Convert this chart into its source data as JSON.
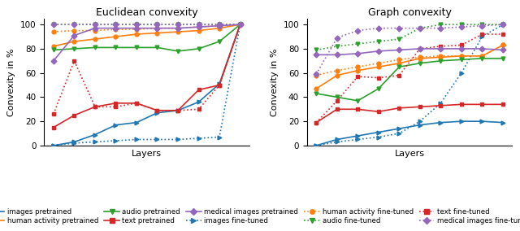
{
  "euclidean": {
    "title": "Euclidean convexity",
    "images_pretrained": [
      0,
      3,
      9,
      17,
      19,
      27,
      29,
      36,
      51,
      100
    ],
    "images_finetuned": [
      0,
      2,
      3,
      4,
      5,
      5,
      5,
      6,
      7,
      100
    ],
    "human_pretrained": [
      82,
      86,
      88,
      90,
      92,
      93,
      94,
      95,
      97,
      100
    ],
    "human_finetuned": [
      94,
      95,
      95,
      96,
      96,
      97,
      97,
      98,
      99,
      100
    ],
    "audio_pretrained": [
      79,
      80,
      81,
      81,
      81,
      81,
      78,
      80,
      86,
      100
    ],
    "audio_finetuned": [
      100,
      100,
      100,
      100,
      100,
      100,
      100,
      100,
      100,
      100
    ],
    "text_pretrained": [
      15,
      25,
      32,
      35,
      35,
      29,
      29,
      46,
      50,
      100
    ],
    "text_finetuned": [
      26,
      70,
      32,
      32,
      35,
      29,
      29,
      30,
      50,
      100
    ],
    "medical_pretrained": [
      70,
      91,
      97,
      97,
      97,
      97,
      97,
      98,
      99,
      100
    ],
    "medical_finetuned": [
      100,
      100,
      100,
      100,
      100,
      100,
      100,
      100,
      100,
      100
    ]
  },
  "graph": {
    "title": "Graph convexity",
    "images_pretrained": [
      0,
      5,
      8,
      11,
      14,
      17,
      19,
      20,
      20,
      19
    ],
    "images_finetuned": [
      0,
      3,
      5,
      7,
      10,
      20,
      35,
      60,
      90,
      100
    ],
    "human_pretrained": [
      47,
      58,
      62,
      65,
      68,
      72,
      73,
      74,
      74,
      83
    ],
    "human_finetuned": [
      58,
      62,
      65,
      68,
      71,
      73,
      74,
      74,
      74,
      83
    ],
    "audio_pretrained": [
      43,
      40,
      37,
      47,
      65,
      68,
      70,
      71,
      72,
      72
    ],
    "audio_finetuned": [
      79,
      82,
      84,
      86,
      88,
      97,
      100,
      100,
      100,
      100
    ],
    "text_pretrained": [
      19,
      30,
      30,
      28,
      31,
      32,
      33,
      34,
      34,
      34
    ],
    "text_finetuned": [
      19,
      37,
      57,
      56,
      58,
      80,
      82,
      83,
      92,
      92
    ],
    "medical_pretrained": [
      75,
      75,
      76,
      78,
      79,
      80,
      80,
      80,
      80,
      79
    ],
    "medical_finetuned": [
      59,
      89,
      95,
      97,
      97,
      97,
      97,
      98,
      99,
      100
    ]
  },
  "n_points": 10,
  "colors": {
    "images": "#1f77b4",
    "human": "#ff7f0e",
    "audio": "#2ca02c",
    "text": "#d62728",
    "medical": "#9467bd"
  },
  "markers": {
    "images": ">",
    "human": "o",
    "audio": "v",
    "text": "s",
    "medical": "D"
  },
  "ylabel": "Convexity in %",
  "xlabel": "Layers",
  "ylim": [
    0,
    105
  ],
  "yticks": [
    0,
    20,
    40,
    60,
    80,
    100
  ]
}
